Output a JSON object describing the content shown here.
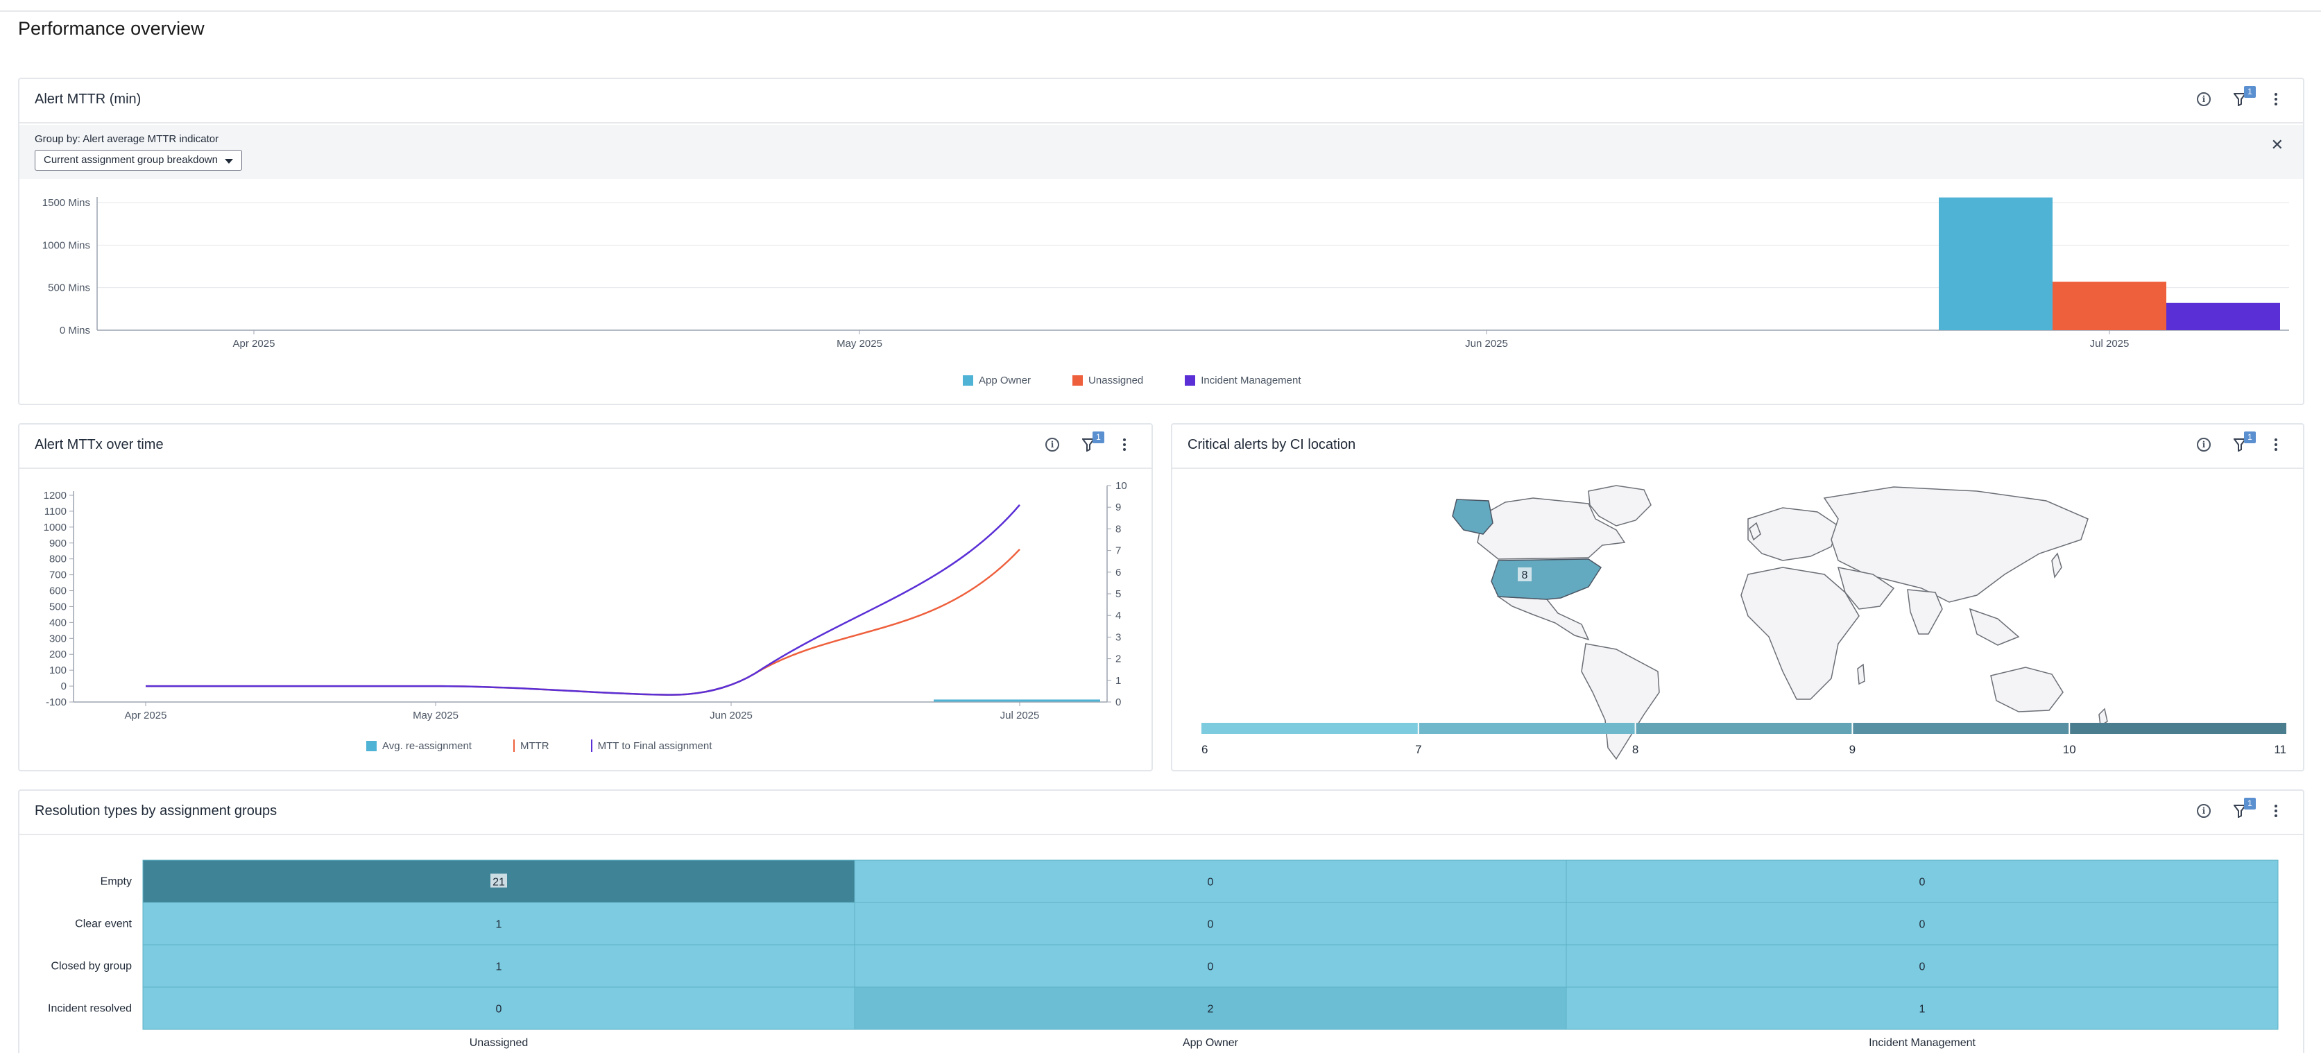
{
  "page": {
    "title": "Performance overview"
  },
  "colors": {
    "app_owner": "#4fb3d6",
    "unassigned": "#ee5f3c",
    "incident_mgmt": "#5a2fd6",
    "mttr_line": "#ee5f3c",
    "final_line": "#5a2fd6",
    "avg_bar": "#4fb3d6"
  },
  "cards": {
    "mttr": {
      "title": "Alert MTTR (min)",
      "filter_count": "1",
      "group_by_label": "Group by: Alert average MTTR indicator",
      "group_by_value": "Current assignment group breakdown",
      "close_icon": "close-icon"
    },
    "mttx": {
      "title": "Alert MTTx over time",
      "filter_count": "1"
    },
    "critical": {
      "title": "Critical alerts by CI location",
      "filter_count": "1"
    },
    "resolution": {
      "title": "Resolution types by assignment groups",
      "filter_count": "1"
    }
  },
  "chart_data": [
    {
      "id": "alert-mttr",
      "type": "bar",
      "categories": [
        "Apr 2025",
        "May 2025",
        "Jun 2025",
        "Jul 2025"
      ],
      "y_ticks": [
        "0 Mins",
        "500 Mins",
        "1000 Mins",
        "1500 Mins"
      ],
      "ylim": [
        0,
        1500
      ],
      "series": [
        {
          "name": "App Owner",
          "values": [
            0,
            0,
            0,
            1560
          ]
        },
        {
          "name": "Unassigned",
          "values": [
            0,
            0,
            0,
            570
          ]
        },
        {
          "name": "Incident Management",
          "values": [
            0,
            0,
            0,
            320
          ]
        }
      ],
      "legend": "bottom-center"
    },
    {
      "id": "alert-mttx",
      "type": "line",
      "x_labels": [
        "Apr 2025",
        "May 2025",
        "Jun 2025",
        "Jul 2025"
      ],
      "y_left_ticks": [
        "-100",
        "0",
        "100",
        "200",
        "300",
        "400",
        "500",
        "600",
        "700",
        "800",
        "900",
        "1000",
        "1100",
        "1200"
      ],
      "y_right_ticks": [
        "0",
        "1",
        "2",
        "3",
        "4",
        "5",
        "6",
        "7",
        "8",
        "9",
        "10"
      ],
      "series": [
        {
          "name": "Avg. re-assignment",
          "kind": "bar",
          "values": [
            0,
            0,
            0,
            0.05
          ]
        },
        {
          "name": "MTTR",
          "kind": "line",
          "values": [
            0,
            0,
            0,
            860
          ]
        },
        {
          "name": "MTT to Final assignment",
          "kind": "line",
          "values": [
            0,
            0,
            0,
            1140
          ]
        }
      ],
      "legend": "bottom-center"
    },
    {
      "id": "critical-alerts-map",
      "type": "map",
      "highlighted_regions": [
        {
          "region": "United States",
          "value": "8"
        },
        {
          "region": "Alaska",
          "value": ""
        }
      ],
      "scale_ticks": [
        "6",
        "7",
        "8",
        "9",
        "10",
        "11"
      ]
    },
    {
      "id": "resolution-types",
      "type": "heatmap",
      "rows": [
        "Empty",
        "Clear event",
        "Closed by group",
        "Incident resolved"
      ],
      "columns": [
        "Unassigned",
        "App Owner",
        "Incident Management"
      ],
      "values": [
        [
          "21",
          "0",
          "0"
        ],
        [
          "1",
          "0",
          "0"
        ],
        [
          "1",
          "0",
          "0"
        ],
        [
          "0",
          "2",
          "1"
        ]
      ]
    }
  ]
}
